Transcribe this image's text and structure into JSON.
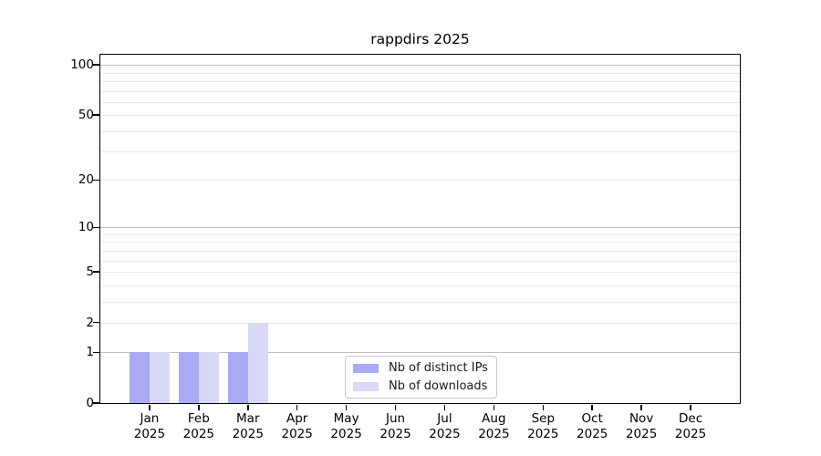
{
  "chart_data": {
    "type": "bar",
    "title": "rappdirs 2025",
    "months": [
      "Jan",
      "Feb",
      "Mar",
      "Apr",
      "May",
      "Jun",
      "Jul",
      "Aug",
      "Sep",
      "Oct",
      "Nov",
      "Dec"
    ],
    "year_label": "2025",
    "series": [
      {
        "name": "Nb of distinct IPs",
        "color": "#a9a9f4",
        "values": [
          1,
          1,
          1,
          0,
          0,
          0,
          0,
          0,
          0,
          0,
          0,
          0
        ]
      },
      {
        "name": "Nb of downloads",
        "color": "#d8d8f7",
        "values": [
          1,
          1,
          2,
          0,
          0,
          0,
          0,
          0,
          0,
          0,
          0,
          0
        ]
      }
    ],
    "y_axis": {
      "scale": "log10(1+y)",
      "tick_values": [
        0,
        1,
        2,
        5,
        10,
        20,
        50,
        100
      ],
      "tick_labels": [
        "0",
        "1",
        "2",
        "5",
        "10",
        "20",
        "50",
        "100"
      ],
      "decade_gridlines": [
        1,
        10,
        100
      ],
      "minor_gridlines": [
        2,
        3,
        4,
        5,
        6,
        7,
        8,
        9,
        20,
        30,
        40,
        50,
        60,
        70,
        80,
        90
      ],
      "ylim": [
        0,
        115
      ]
    },
    "legend_position": "lower center",
    "grid": true
  }
}
